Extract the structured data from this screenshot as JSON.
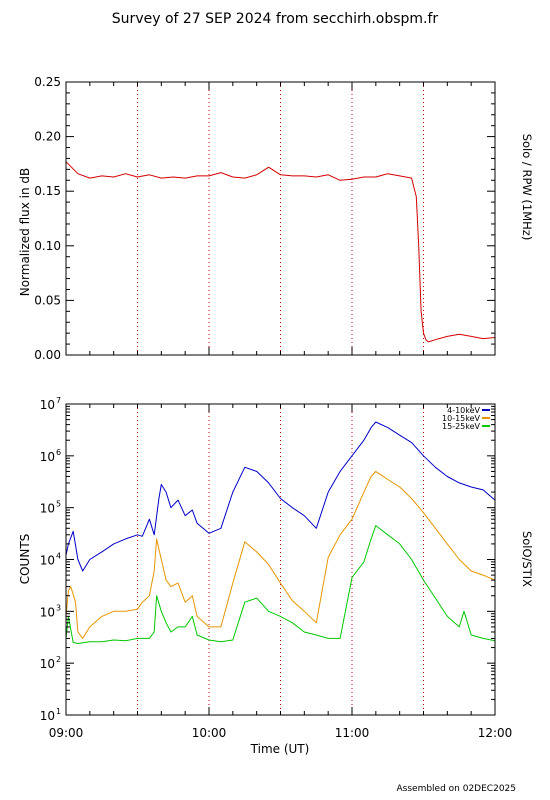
{
  "title": "Survey of 27 SEP 2024 from secchirh.obspm.fr",
  "footer": "Assembled on 02DEC2025",
  "colors": {
    "rpw": "#d40000",
    "low": "#0000c8",
    "mid": "#e69500",
    "high": "#00c800",
    "marker": "#c00000"
  },
  "x_axis": {
    "label": "Time (UT)",
    "range": [
      "09:00",
      "12:00"
    ],
    "ticks": [
      "09:00",
      "10:00",
      "11:00",
      "12:00"
    ],
    "marker_lines": [
      "09:30",
      "10:00",
      "10:30",
      "11:00",
      "11:30"
    ]
  },
  "chart_data": [
    {
      "type": "line",
      "ylabel": "Normalized flux in dB",
      "side_label": "Solo / RPW (1MHz)",
      "ylim": [
        0.0,
        0.25
      ],
      "yticks": [
        "0.00",
        "0.05",
        "0.10",
        "0.15",
        "0.20",
        "0.25"
      ],
      "series": [
        {
          "color": "#d40000",
          "x": [
            "09:00",
            "09:05",
            "09:10",
            "09:15",
            "09:20",
            "09:25",
            "09:30",
            "09:35",
            "09:40",
            "09:45",
            "09:50",
            "09:55",
            "10:00",
            "10:05",
            "10:10",
            "10:15",
            "10:20",
            "10:25",
            "10:30",
            "10:35",
            "10:40",
            "10:45",
            "10:50",
            "10:55",
            "11:00",
            "11:05",
            "11:10",
            "11:15",
            "11:20",
            "11:25",
            "11:27",
            "11:28",
            "11:29",
            "11:30",
            "11:31",
            "11:32",
            "11:35",
            "11:40",
            "11:45",
            "11:50",
            "11:55",
            "12:00"
          ],
          "values": [
            0.177,
            0.166,
            0.162,
            0.164,
            0.163,
            0.166,
            0.163,
            0.165,
            0.162,
            0.163,
            0.162,
            0.164,
            0.164,
            0.167,
            0.163,
            0.162,
            0.165,
            0.172,
            0.165,
            0.164,
            0.164,
            0.163,
            0.165,
            0.16,
            0.161,
            0.163,
            0.163,
            0.166,
            0.164,
            0.162,
            0.145,
            0.1,
            0.04,
            0.02,
            0.014,
            0.012,
            0.014,
            0.017,
            0.019,
            0.017,
            0.015,
            0.016
          ]
        }
      ]
    },
    {
      "type": "line",
      "ylabel": "COUNTS",
      "side_label": "SolO/STIX",
      "yscale": "log",
      "ylim": [
        10,
        10000000
      ],
      "ytick_exponents": [
        1,
        2,
        3,
        4,
        5,
        6,
        7
      ],
      "legend_position": "top-right",
      "series": [
        {
          "name": "4-10keV",
          "color": "#0000c8",
          "x": [
            "09:00",
            "09:01",
            "09:03",
            "09:05",
            "09:07",
            "09:10",
            "09:15",
            "09:20",
            "09:25",
            "09:30",
            "09:32",
            "09:35",
            "09:37",
            "09:39",
            "09:40",
            "09:42",
            "09:44",
            "09:47",
            "09:50",
            "09:53",
            "09:55",
            "10:00",
            "10:05",
            "10:10",
            "10:15",
            "10:20",
            "10:25",
            "10:30",
            "10:35",
            "10:40",
            "10:45",
            "10:50",
            "10:55",
            "11:00",
            "11:05",
            "11:08",
            "11:10",
            "11:15",
            "11:20",
            "11:25",
            "11:30",
            "11:35",
            "11:40",
            "11:45",
            "11:50",
            "11:55",
            "12:00"
          ],
          "values": [
            12000,
            20000,
            35000,
            10000,
            6000,
            10000,
            14000,
            20000,
            25000,
            30000,
            28000,
            60000,
            30000,
            150000,
            280000,
            200000,
            100000,
            140000,
            70000,
            90000,
            50000,
            32000,
            40000,
            200000,
            600000,
            500000,
            300000,
            150000,
            100000,
            70000,
            40000,
            200000,
            500000,
            1000000,
            2000000,
            3500000,
            4500000,
            3500000,
            2500000,
            1800000,
            1000000,
            600000,
            400000,
            300000,
            250000,
            220000,
            140000
          ]
        },
        {
          "name": "10-15keV",
          "color": "#e69500",
          "x": [
            "09:00",
            "09:01",
            "09:02",
            "09:04",
            "09:05",
            "09:07",
            "09:10",
            "09:15",
            "09:20",
            "09:25",
            "09:30",
            "09:32",
            "09:35",
            "09:37",
            "09:38",
            "09:40",
            "09:42",
            "09:44",
            "09:47",
            "09:50",
            "09:53",
            "09:55",
            "10:00",
            "10:05",
            "10:10",
            "10:15",
            "10:20",
            "10:25",
            "10:30",
            "10:35",
            "10:40",
            "10:45",
            "10:50",
            "10:55",
            "11:00",
            "11:05",
            "11:08",
            "11:10",
            "11:15",
            "11:20",
            "11:25",
            "11:30",
            "11:35",
            "11:40",
            "11:45",
            "11:50",
            "11:55",
            "12:00"
          ],
          "values": [
            800,
            2500,
            3000,
            1500,
            400,
            300,
            500,
            800,
            1000,
            1000,
            1100,
            1500,
            2000,
            6000,
            25000,
            10000,
            4000,
            3000,
            3500,
            1500,
            2000,
            800,
            500,
            500,
            3500,
            22000,
            14000,
            8000,
            3500,
            1600,
            1000,
            600,
            11000,
            30000,
            60000,
            200000,
            400000,
            500000,
            350000,
            250000,
            150000,
            80000,
            40000,
            20000,
            10000,
            6000,
            5000,
            4000
          ]
        },
        {
          "name": "15-25keV",
          "color": "#00c800",
          "x": [
            "09:00",
            "09:01",
            "09:03",
            "09:05",
            "09:10",
            "09:15",
            "09:20",
            "09:25",
            "09:30",
            "09:35",
            "09:37",
            "09:38",
            "09:40",
            "09:42",
            "09:44",
            "09:47",
            "09:50",
            "09:53",
            "09:55",
            "10:00",
            "10:05",
            "10:10",
            "10:15",
            "10:20",
            "10:25",
            "10:30",
            "10:35",
            "10:40",
            "10:45",
            "10:50",
            "10:55",
            "11:00",
            "11:05",
            "11:08",
            "11:10",
            "11:15",
            "11:20",
            "11:25",
            "11:30",
            "11:35",
            "11:40",
            "11:45",
            "11:47",
            "11:50",
            "11:55",
            "12:00"
          ],
          "values": [
            300,
            800,
            250,
            240,
            260,
            260,
            280,
            270,
            300,
            300,
            400,
            2000,
            1000,
            600,
            400,
            500,
            500,
            800,
            350,
            280,
            260,
            280,
            1500,
            1800,
            1000,
            800,
            600,
            400,
            350,
            300,
            300,
            4500,
            9000,
            25000,
            45000,
            30000,
            20000,
            10000,
            4000,
            1800,
            800,
            500,
            1000,
            350,
            300,
            270
          ]
        }
      ]
    }
  ]
}
